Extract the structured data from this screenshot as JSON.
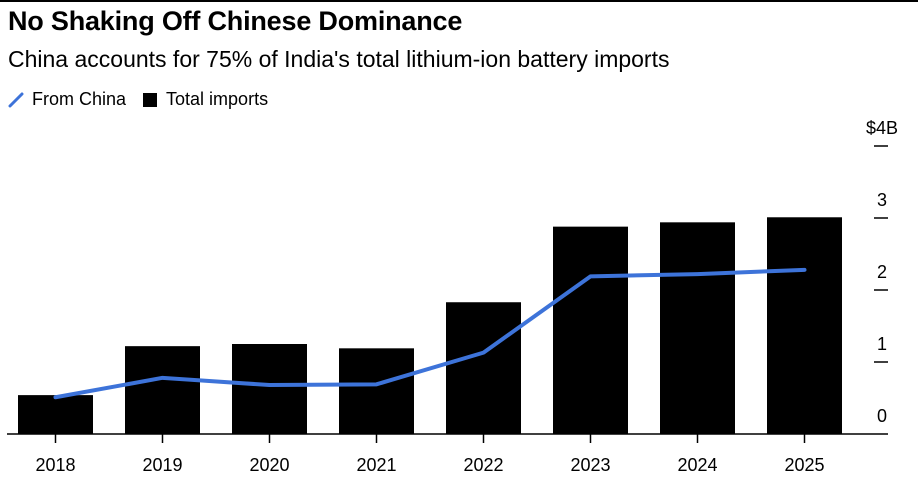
{
  "title": "No Shaking Off Chinese Dominance",
  "subtitle": "China accounts for 75% of India's total lithium-ion battery imports",
  "legend": [
    {
      "label": "From China",
      "icon": "line-swatch-icon",
      "color": "#3d73d9"
    },
    {
      "label": "Total imports",
      "icon": "square-swatch-icon",
      "color": "#000000"
    }
  ],
  "chart_data": {
    "type": "bar",
    "title": "No Shaking Off Chinese Dominance",
    "subtitle": "China accounts for 75% of India's total lithium-ion battery imports",
    "xlabel": "",
    "ylabel": "",
    "categories": [
      "2018",
      "2019",
      "2020",
      "2021",
      "2022",
      "2023",
      "2024",
      "2025"
    ],
    "series": [
      {
        "name": "Total imports",
        "type": "bar",
        "color": "#000000",
        "values": [
          0.54,
          1.22,
          1.25,
          1.19,
          1.83,
          2.88,
          2.94,
          3.01
        ]
      },
      {
        "name": "From China",
        "type": "line",
        "color": "#3d73d9",
        "values": [
          0.51,
          0.78,
          0.68,
          0.69,
          1.13,
          2.19,
          2.22,
          2.28
        ]
      }
    ],
    "ylim": [
      0,
      4
    ],
    "yticks": [
      0,
      1,
      2,
      3,
      4
    ],
    "ytick_labels": [
      "0",
      "1",
      "2",
      "3",
      "$4B"
    ],
    "y_axis_side": "right",
    "grid": false,
    "legend_position": "top-left"
  }
}
